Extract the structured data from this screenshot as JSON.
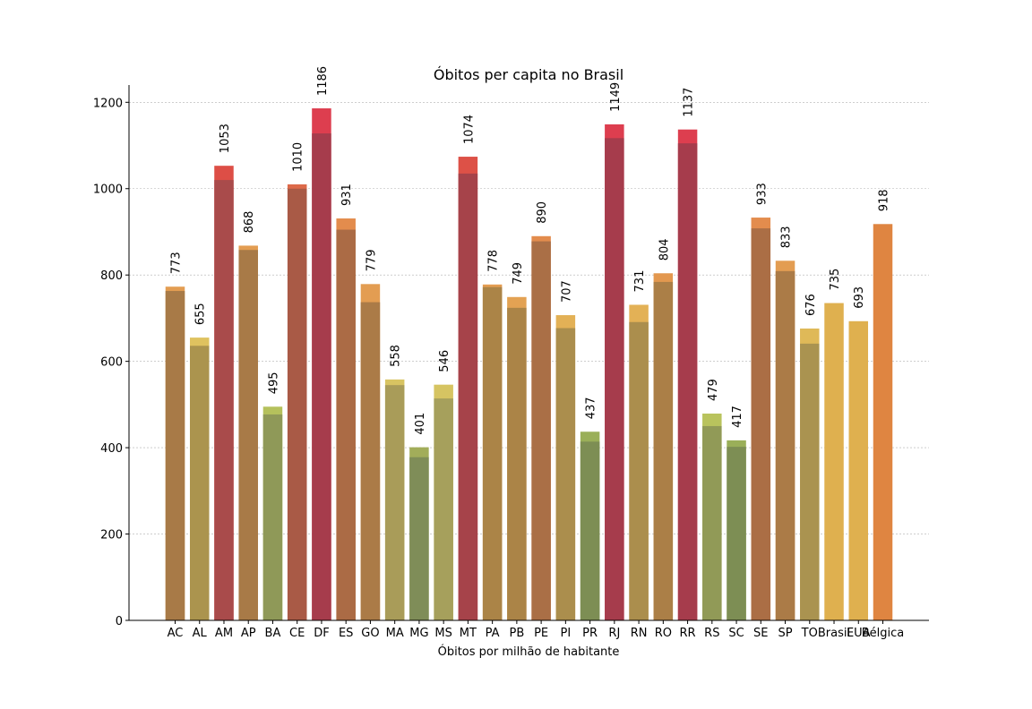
{
  "chart_data": {
    "type": "bar",
    "title": "Óbitos per capita no Brasil",
    "xlabel": "Óbitos por milhão de habitante",
    "ylabel": "",
    "ylim": [
      0,
      1240
    ],
    "yticks": [
      0,
      200,
      400,
      600,
      800,
      1000,
      1200
    ],
    "grid": "horizontal",
    "categories": [
      "AC",
      "AL",
      "AM",
      "AP",
      "BA",
      "CE",
      "DF",
      "ES",
      "GO",
      "MA",
      "MG",
      "MS",
      "MT",
      "PA",
      "PB",
      "PE",
      "PI",
      "PR",
      "RJ",
      "RN",
      "RO",
      "RR",
      "RS",
      "SC",
      "SE",
      "SP",
      "TO",
      "Brasil",
      "EUA",
      "Bélgica"
    ],
    "values": [
      773,
      655,
      1053,
      868,
      495,
      1010,
      1186,
      931,
      779,
      558,
      401,
      546,
      1074,
      778,
      749,
      890,
      707,
      437,
      1149,
      731,
      804,
      1137,
      479,
      417,
      933,
      833,
      676,
      735,
      693,
      918
    ],
    "previous_values": [
      763,
      636,
      1020,
      858,
      477,
      1000,
      1128,
      905,
      737,
      545,
      378,
      514,
      1035,
      772,
      724,
      878,
      677,
      414,
      1117,
      691,
      784,
      1105,
      450,
      402,
      908,
      809,
      641,
      null,
      null,
      null
    ],
    "colors": [
      "#e39d52",
      "#dfc25f",
      "#dd4e46",
      "#e39d52",
      "#b5c15c",
      "#dd6a4a",
      "#dd3e4f",
      "#e38c4d",
      "#e39d52",
      "#d8c462",
      "#a2ad5a",
      "#d6c462",
      "#dd5147",
      "#e39d52",
      "#e3a253",
      "#e38c4d",
      "#e3b156",
      "#9aaf59",
      "#dd3e4f",
      "#e3b156",
      "#e3984f",
      "#dd3e4f",
      "#b9c35d",
      "#9aaf59",
      "#e38c4d",
      "#e39d52",
      "#dfb958",
      "#dfb04f",
      "#dfb04f",
      "#df8541"
    ],
    "previous_colors": [
      "#a87a47",
      "#ab944e",
      "#a94b4b",
      "#a87a47",
      "#8f9958",
      "#a95a46",
      "#a63c4c",
      "#ab6b45",
      "#ab7b47",
      "#a99c59",
      "#7f8d58",
      "#a6a05c",
      "#a6434a",
      "#ab8447",
      "#ab8447",
      "#aa6f46",
      "#ab8e4d",
      "#7d8e54",
      "#a63c4c",
      "#ab8e4d",
      "#ab7f47",
      "#a63c4c",
      "#919a57",
      "#7d8e54",
      "#ab6e45",
      "#ab7b47",
      "#aa9350",
      null,
      null,
      null
    ]
  }
}
